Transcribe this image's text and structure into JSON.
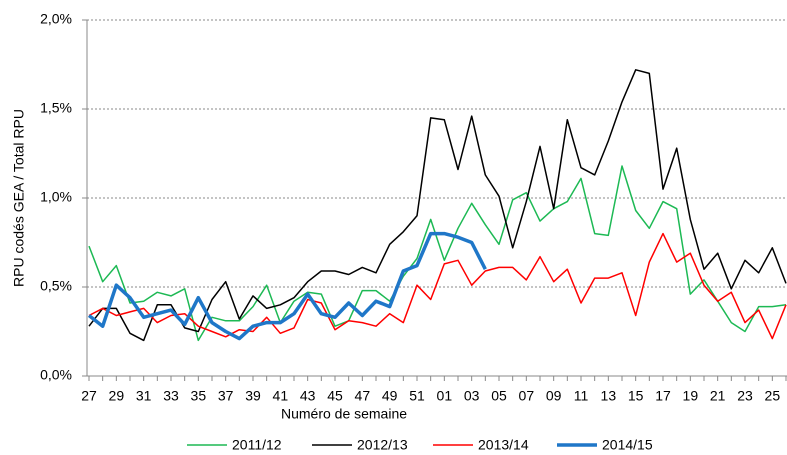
{
  "chart_data": {
    "type": "line",
    "x_label": "Numéro de semaine",
    "y_label": "RPU codés GEA / Total RPU",
    "categories": [
      "27",
      null,
      "29",
      null,
      "31",
      null,
      "33",
      null,
      "35",
      null,
      "37",
      null,
      "39",
      null,
      "41",
      null,
      "43",
      null,
      "45",
      null,
      "47",
      null,
      "49",
      null,
      "51",
      null,
      "01",
      null,
      "03",
      null,
      "05",
      null,
      "07",
      null,
      "09",
      null,
      "11",
      null,
      "13",
      null,
      "15",
      null,
      "17",
      null,
      "19",
      null,
      "21",
      null,
      "23",
      null,
      "25",
      null
    ],
    "ylim": [
      0,
      2
    ],
    "yticks": [
      {
        "value": 0,
        "label": "0,0%"
      },
      {
        "value": 0.5,
        "label": "0,5%"
      },
      {
        "value": 1,
        "label": "1,0%"
      },
      {
        "value": 1.5,
        "label": "1,5%"
      },
      {
        "value": 2,
        "label": "2,0%"
      }
    ],
    "grid": true,
    "legend": "bottom",
    "series": [
      {
        "name": "2011/12",
        "color": "#1db954",
        "width": 1.5,
        "values": [
          0.73,
          0.53,
          0.62,
          0.41,
          0.42,
          0.47,
          0.45,
          0.49,
          0.2,
          0.33,
          0.31,
          0.31,
          0.39,
          0.51,
          0.3,
          0.42,
          0.47,
          0.46,
          0.28,
          0.31,
          0.48,
          0.48,
          0.42,
          0.56,
          0.66,
          0.88,
          0.65,
          0.83,
          0.97,
          0.85,
          0.74,
          0.99,
          1.03,
          0.87,
          0.94,
          0.98,
          1.11,
          0.8,
          0.79,
          1.18,
          0.93,
          0.83,
          0.98,
          0.94,
          0.46,
          0.54,
          0.42,
          0.3,
          0.25,
          0.39,
          0.39,
          0.4
        ]
      },
      {
        "name": "2012/13",
        "color": "#000000",
        "width": 1.5,
        "values": [
          0.28,
          0.38,
          0.38,
          0.24,
          0.2,
          0.4,
          0.4,
          0.27,
          0.25,
          0.43,
          0.53,
          0.32,
          0.45,
          0.38,
          0.4,
          0.44,
          0.53,
          0.59,
          0.59,
          0.57,
          0.61,
          0.58,
          0.74,
          0.81,
          0.9,
          1.45,
          1.44,
          1.16,
          1.46,
          1.13,
          1.01,
          0.72,
          0.98,
          1.29,
          0.94,
          1.44,
          1.17,
          1.13,
          1.32,
          1.54,
          1.72,
          1.7,
          1.05,
          1.28,
          0.88,
          0.6,
          0.69,
          0.49,
          0.65,
          0.58,
          0.72,
          0.52
        ]
      },
      {
        "name": "2013/14",
        "color": "#ff0000",
        "width": 1.5,
        "values": [
          0.34,
          0.38,
          0.34,
          0.36,
          0.38,
          0.3,
          0.34,
          0.35,
          0.28,
          0.25,
          0.22,
          0.26,
          0.25,
          0.33,
          0.24,
          0.27,
          0.43,
          0.41,
          0.26,
          0.31,
          0.3,
          0.28,
          0.35,
          0.3,
          0.51,
          0.43,
          0.63,
          0.65,
          0.51,
          0.59,
          0.61,
          0.61,
          0.54,
          0.67,
          0.53,
          0.6,
          0.41,
          0.55,
          0.55,
          0.58,
          0.34,
          0.64,
          0.8,
          0.64,
          0.69,
          0.51,
          0.42,
          0.47,
          0.3,
          0.37,
          0.21,
          0.4
        ]
      },
      {
        "name": "2014/15",
        "color": "#1f77c8",
        "width": 3.5,
        "values": [
          0.34,
          0.28,
          0.51,
          0.44,
          0.33,
          0.35,
          0.37,
          0.29,
          0.44,
          0.3,
          0.25,
          0.21,
          0.28,
          0.3,
          0.3,
          0.35,
          0.46,
          0.35,
          0.33,
          0.41,
          0.34,
          0.42,
          0.39,
          0.59,
          0.62,
          0.8,
          0.8,
          0.78,
          0.75,
          0.6,
          null,
          null,
          null,
          null,
          null,
          null,
          null,
          null,
          null,
          null,
          null,
          null,
          null,
          null,
          null,
          null,
          null,
          null,
          null,
          null,
          null,
          null
        ]
      }
    ]
  }
}
